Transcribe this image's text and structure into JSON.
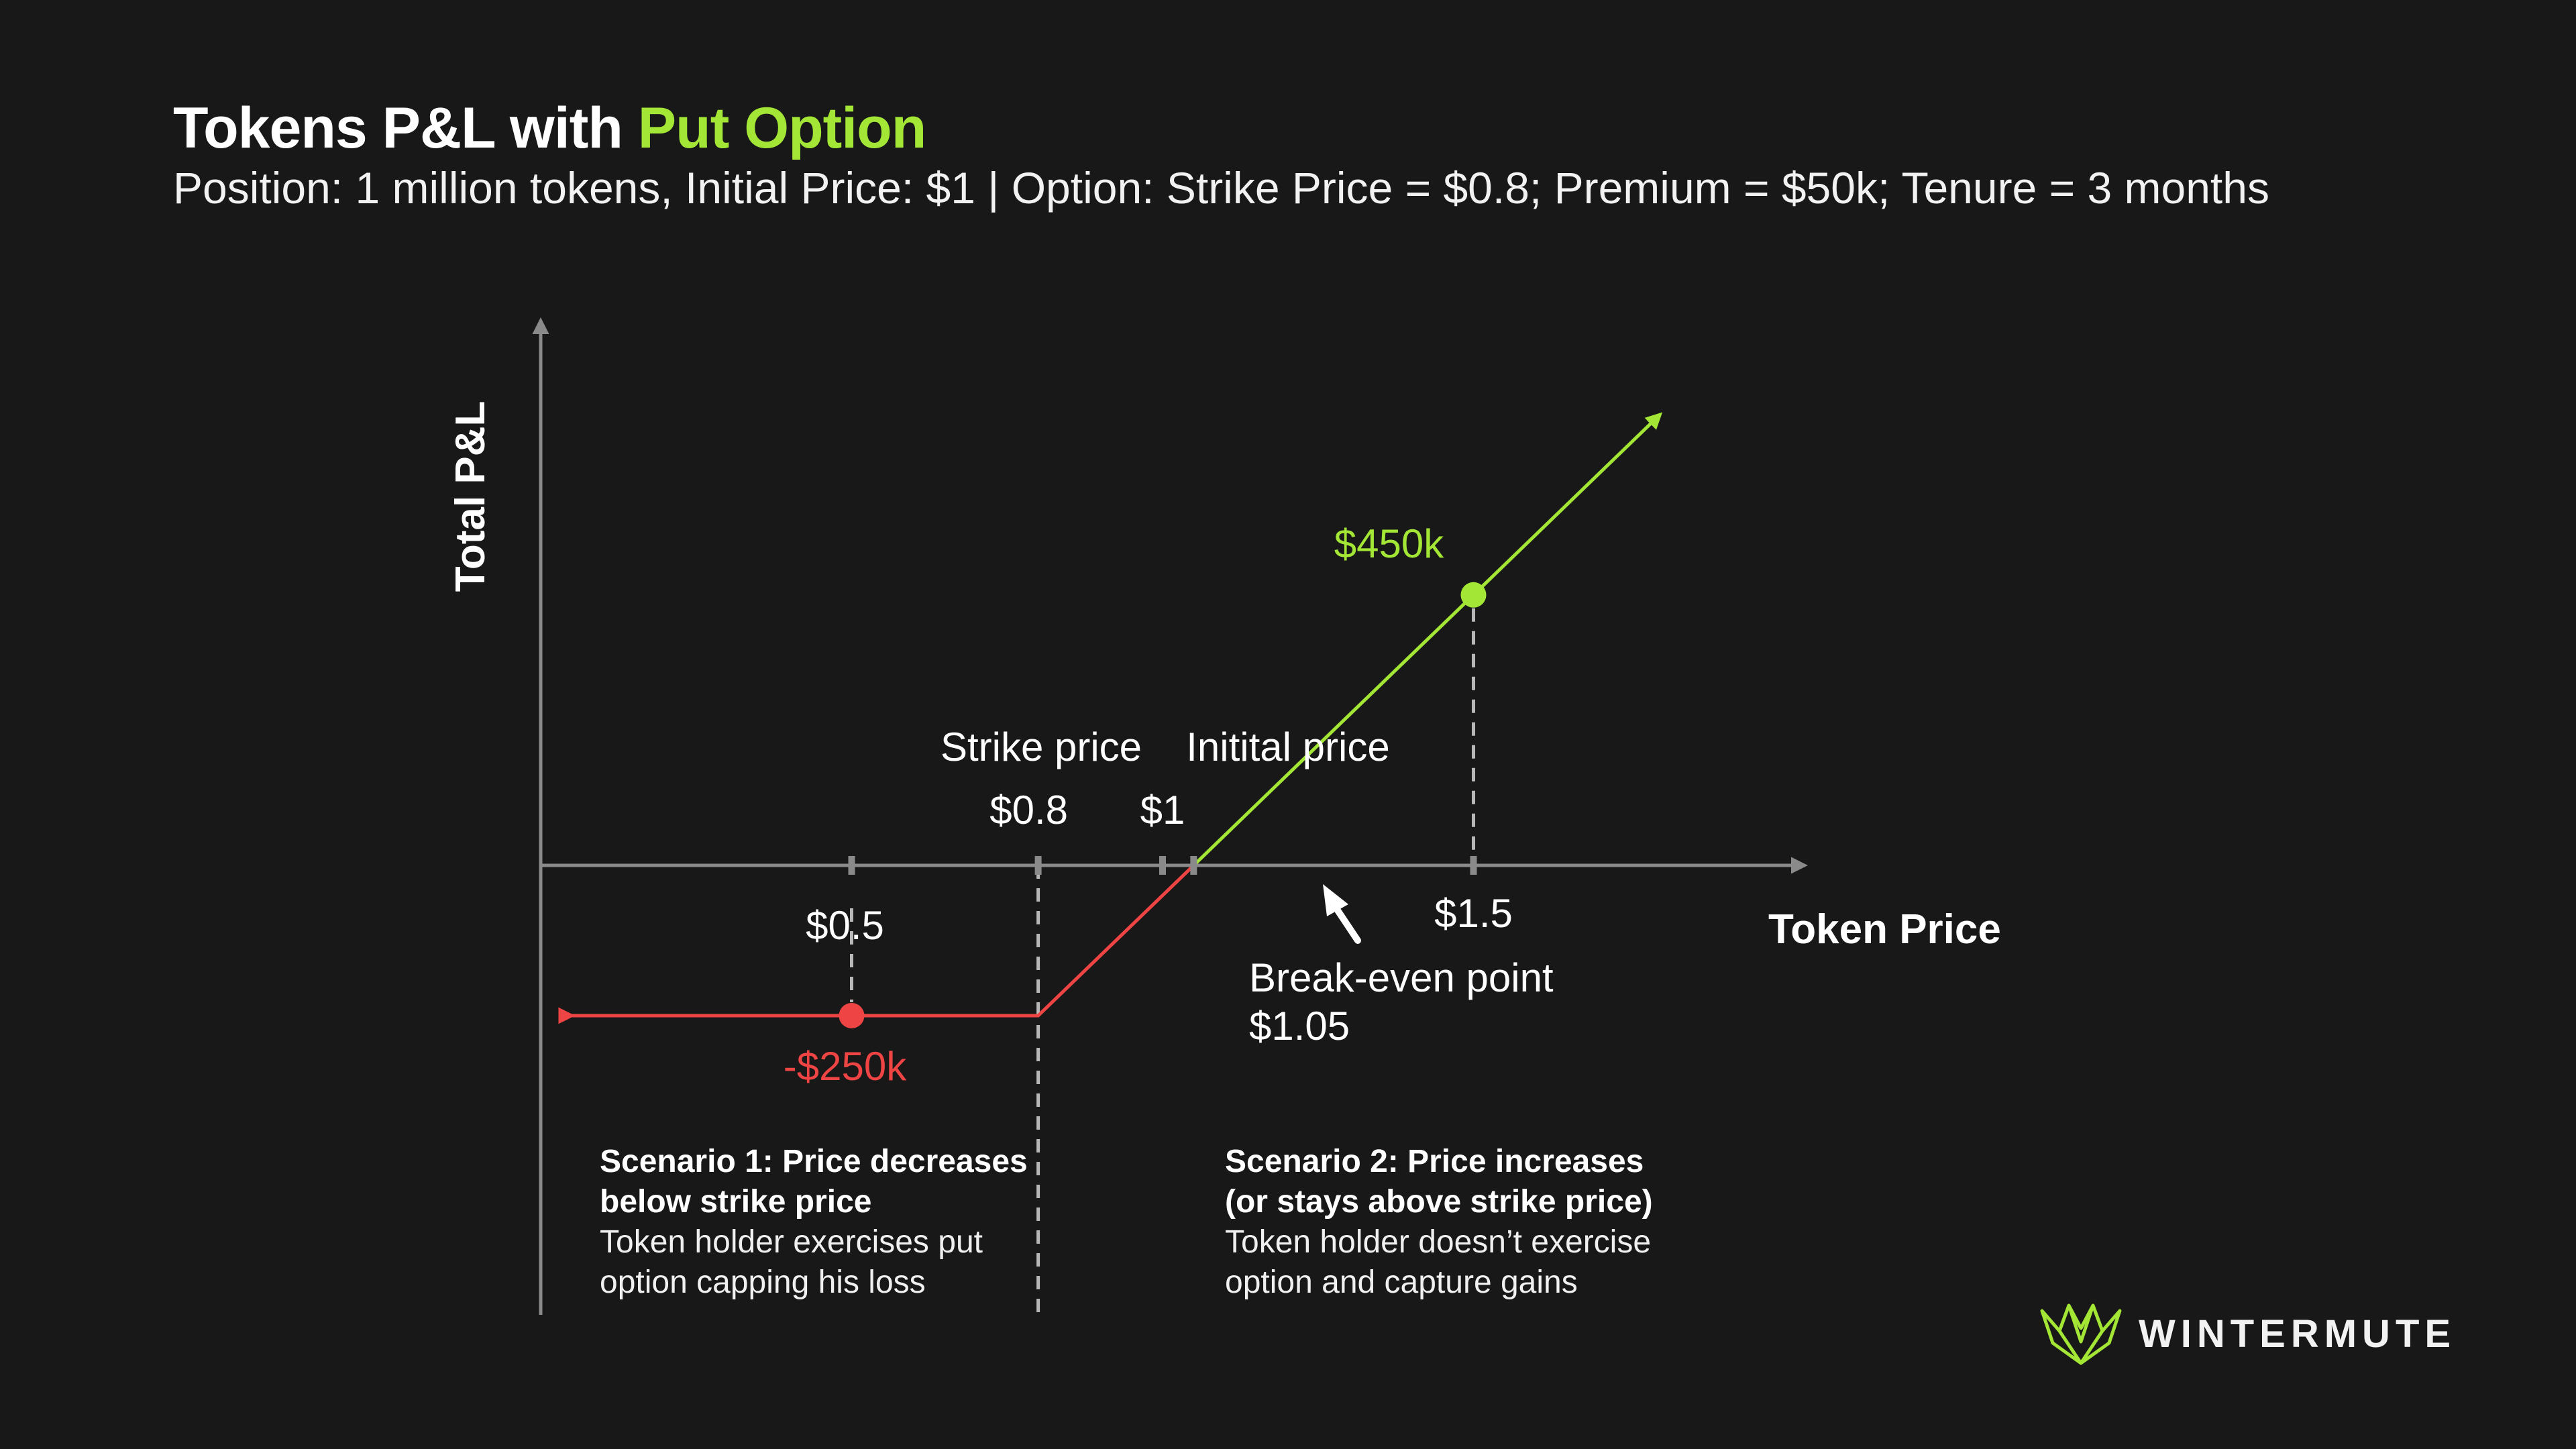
{
  "title": {
    "prefix": "Tokens P&L with ",
    "highlight": "Put Option"
  },
  "subtitle": "Position: 1 million tokens, Initial Price: $1 | Option: Strike Price = $0.8; Premium = $50k; Tenure = 3 months",
  "colors": {
    "accent": "#a3e635",
    "loss": "#ef4444",
    "axis": "#8a8a8a"
  },
  "chart_data": {
    "type": "line",
    "xlabel": "Token Price",
    "ylabel": "Total P&L",
    "grid": false,
    "xlim": [
      0.0,
      1.75
    ],
    "ylim": [
      -300,
      650
    ],
    "x_ticks": [
      {
        "value": 0.5,
        "label": "$0.5"
      },
      {
        "value": 0.8,
        "label": "$0.8"
      },
      {
        "value": 1.0,
        "label": "$1"
      },
      {
        "value": 1.5,
        "label": "$1.5"
      }
    ],
    "series": [
      {
        "x": [
          0.05,
          0.8,
          1.05
        ],
        "y": [
          -250,
          -250,
          0
        ],
        "color": "#ef4444"
      },
      {
        "x": [
          1.05,
          1.5,
          1.8
        ],
        "y": [
          0,
          450,
          750
        ],
        "color": "#a3e635"
      }
    ],
    "points": [
      {
        "x": 0.5,
        "y": -250,
        "label": "-$250k",
        "color": "#ef4444"
      },
      {
        "x": 1.5,
        "y": 450,
        "label": "$450k",
        "color": "#a3e635"
      }
    ],
    "annotations": {
      "strike_label": "Strike price",
      "initial_label": "Initital price",
      "breakeven_label": "Break-even point",
      "breakeven_value": "$1.05",
      "breakeven_x": 1.05
    }
  },
  "scenarios": [
    {
      "head1": "Scenario 1: Price decreases",
      "head2": "below strike price",
      "body1": "Token holder exercises put",
      "body2": "option capping his loss"
    },
    {
      "head1": "Scenario 2: Price increases",
      "head2": "(or stays above strike price)",
      "body1": "Token holder doesn’t exercise",
      "body2": "option and capture gains"
    }
  ],
  "logo": {
    "text": "WINTERMUTE",
    "icon": "wintermute-logo-icon"
  }
}
